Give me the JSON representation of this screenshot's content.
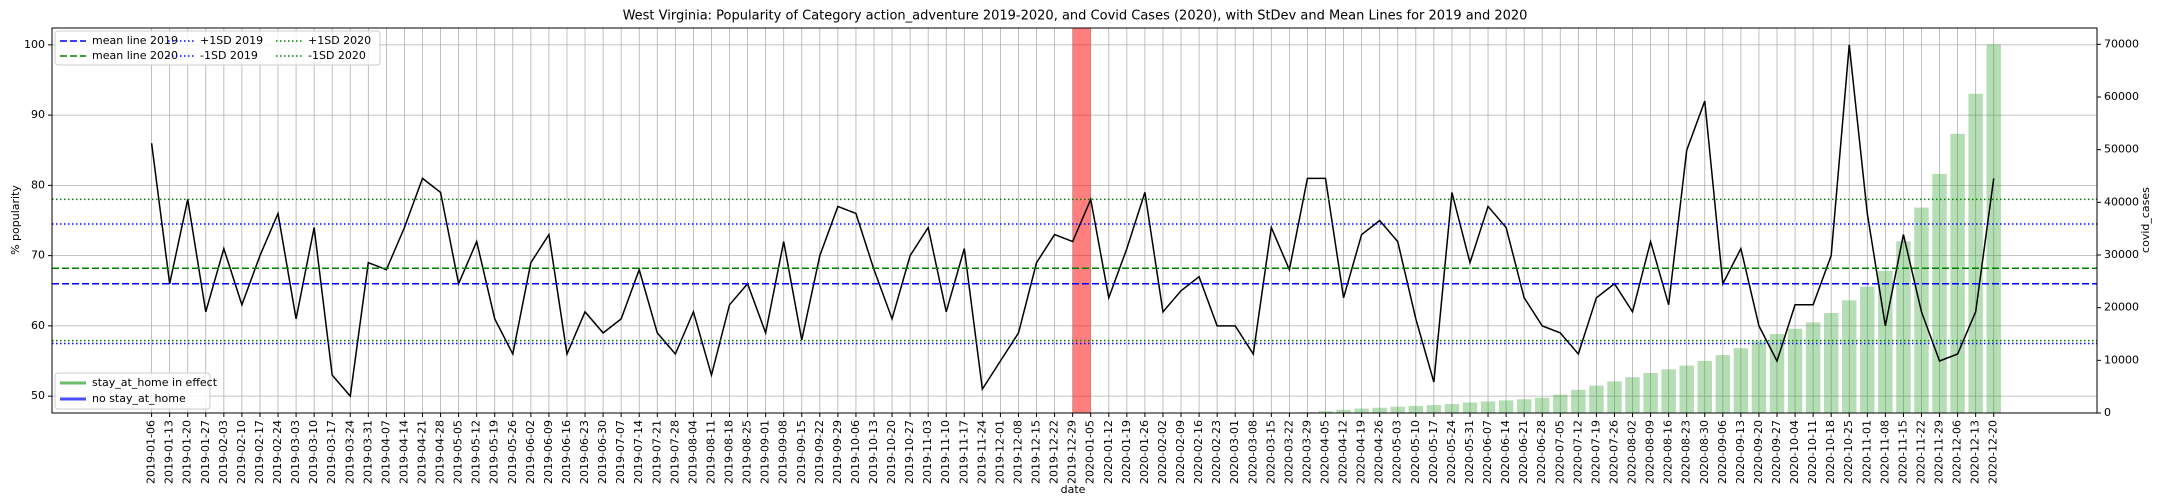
{
  "chart_data": {
    "type": "line",
    "title": "West Virginia: Popularity of Category action_adventure 2019-2020, and Covid Cases (2020), with StDev and Mean Lines for 2019 and 2020",
    "xlabel": "date",
    "ylabel": "% popularity",
    "y2label": "covid_cases",
    "categories": [
      "2019-01-06",
      "2019-01-13",
      "2019-01-20",
      "2019-01-27",
      "2019-02-03",
      "2019-02-10",
      "2019-02-17",
      "2019-02-24",
      "2019-03-03",
      "2019-03-10",
      "2019-03-17",
      "2019-03-24",
      "2019-03-31",
      "2019-04-07",
      "2019-04-14",
      "2019-04-21",
      "2019-04-28",
      "2019-05-05",
      "2019-05-12",
      "2019-05-19",
      "2019-05-26",
      "2019-06-02",
      "2019-06-09",
      "2019-06-16",
      "2019-06-23",
      "2019-06-30",
      "2019-07-07",
      "2019-07-14",
      "2019-07-21",
      "2019-07-28",
      "2019-08-04",
      "2019-08-11",
      "2019-08-18",
      "2019-08-25",
      "2019-09-01",
      "2019-09-08",
      "2019-09-15",
      "2019-09-22",
      "2019-09-29",
      "2019-10-06",
      "2019-10-13",
      "2019-10-20",
      "2019-10-27",
      "2019-11-03",
      "2019-11-10",
      "2019-11-17",
      "2019-11-24",
      "2019-12-01",
      "2019-12-08",
      "2019-12-15",
      "2019-12-22",
      "2019-12-29",
      "2020-01-05",
      "2020-01-12",
      "2020-01-19",
      "2020-01-26",
      "2020-02-02",
      "2020-02-09",
      "2020-02-16",
      "2020-02-23",
      "2020-03-01",
      "2020-03-08",
      "2020-03-15",
      "2020-03-22",
      "2020-03-29",
      "2020-04-05",
      "2020-04-12",
      "2020-04-19",
      "2020-04-26",
      "2020-05-03",
      "2020-05-10",
      "2020-05-17",
      "2020-05-24",
      "2020-05-31",
      "2020-06-07",
      "2020-06-14",
      "2020-06-21",
      "2020-06-28",
      "2020-07-05",
      "2020-07-12",
      "2020-07-19",
      "2020-07-26",
      "2020-08-02",
      "2020-08-09",
      "2020-08-16",
      "2020-08-23",
      "2020-08-30",
      "2020-09-06",
      "2020-09-13",
      "2020-09-20",
      "2020-09-27",
      "2020-10-04",
      "2020-10-11",
      "2020-10-18",
      "2020-10-25",
      "2020-11-01",
      "2020-11-08",
      "2020-11-15",
      "2020-11-22",
      "2020-11-29",
      "2020-12-06",
      "2020-12-13",
      "2020-12-20"
    ],
    "series": [
      {
        "color": "#000000",
        "values": [
          86,
          66,
          78,
          62,
          71,
          63,
          70,
          76,
          61,
          74,
          53,
          50,
          69,
          68,
          74,
          81,
          79,
          66,
          72,
          61,
          56,
          69,
          73,
          56,
          62,
          59,
          61,
          68,
          59,
          56,
          62,
          53,
          63,
          66,
          59,
          72,
          58,
          70,
          77,
          76,
          68,
          61,
          70,
          74,
          62,
          71,
          51,
          55,
          59,
          69,
          73,
          72,
          78,
          64,
          71,
          79,
          62,
          65,
          67,
          60,
          60,
          56,
          74,
          68,
          81,
          81,
          64,
          73,
          75,
          72,
          61,
          52,
          79,
          69,
          77,
          74,
          64,
          60,
          59,
          56,
          64,
          66,
          62,
          72,
          63,
          85,
          92,
          66,
          71,
          60,
          55,
          63,
          63,
          70,
          100,
          76,
          60,
          73,
          62,
          55,
          56,
          62,
          81
        ]
      },
      {
        "color": "#2ca02c",
        "type": "bar",
        "axis": "y2",
        "alpha": 0.35,
        "values": [
          null,
          null,
          null,
          null,
          null,
          null,
          null,
          null,
          null,
          null,
          null,
          null,
          null,
          null,
          null,
          null,
          null,
          null,
          null,
          null,
          null,
          null,
          null,
          null,
          null,
          null,
          null,
          null,
          null,
          null,
          null,
          null,
          null,
          null,
          null,
          null,
          null,
          null,
          null,
          null,
          null,
          null,
          null,
          null,
          null,
          null,
          null,
          null,
          null,
          null,
          null,
          null,
          null,
          null,
          null,
          null,
          null,
          null,
          null,
          null,
          null,
          null,
          null,
          20,
          150,
          350,
          600,
          850,
          1000,
          1200,
          1350,
          1500,
          1700,
          2000,
          2200,
          2400,
          2600,
          2900,
          3500,
          4400,
          5200,
          6000,
          6800,
          7600,
          8300,
          9000,
          9900,
          11000,
          12300,
          13600,
          15000,
          16000,
          17200,
          19000,
          21400,
          24000,
          27000,
          32600,
          39000,
          45400,
          53000,
          60600,
          70000
        ]
      }
    ],
    "hlines": [
      {
        "name": "mean line 2019",
        "value": 66,
        "color": "#0000ff",
        "style": "dashed"
      },
      {
        "name": "mean line 2020",
        "value": 68.2,
        "color": "#008000",
        "style": "dashed"
      },
      {
        "name": "+1SD 2019",
        "value": 74.5,
        "color": "#0000ff",
        "style": "dotted"
      },
      {
        "name": "-1SD 2019",
        "value": 57.5,
        "color": "#0000ff",
        "style": "dotted"
      },
      {
        "name": "+1SD 2020",
        "value": 78,
        "color": "#008000",
        "style": "dotted"
      },
      {
        "name": "-1SD 2020",
        "value": 57.9,
        "color": "#008000",
        "style": "dotted"
      }
    ],
    "highlight": {
      "from": "2019-12-29",
      "to": "2020-01-05",
      "color": "#ff0000"
    },
    "legend2": [
      {
        "name": "stay_at_home in effect",
        "color": "#2ca02c"
      },
      {
        "name": "no stay_at_home",
        "color": "#0000ff"
      }
    ],
    "ylim": [
      47.6,
      102.4
    ],
    "yticks": [
      50,
      60,
      70,
      80,
      90,
      100
    ],
    "y2lim": [
      0,
      73100
    ],
    "y2ticks": [
      0,
      10000,
      20000,
      30000,
      40000,
      50000,
      60000,
      70000
    ],
    "grid": true
  }
}
